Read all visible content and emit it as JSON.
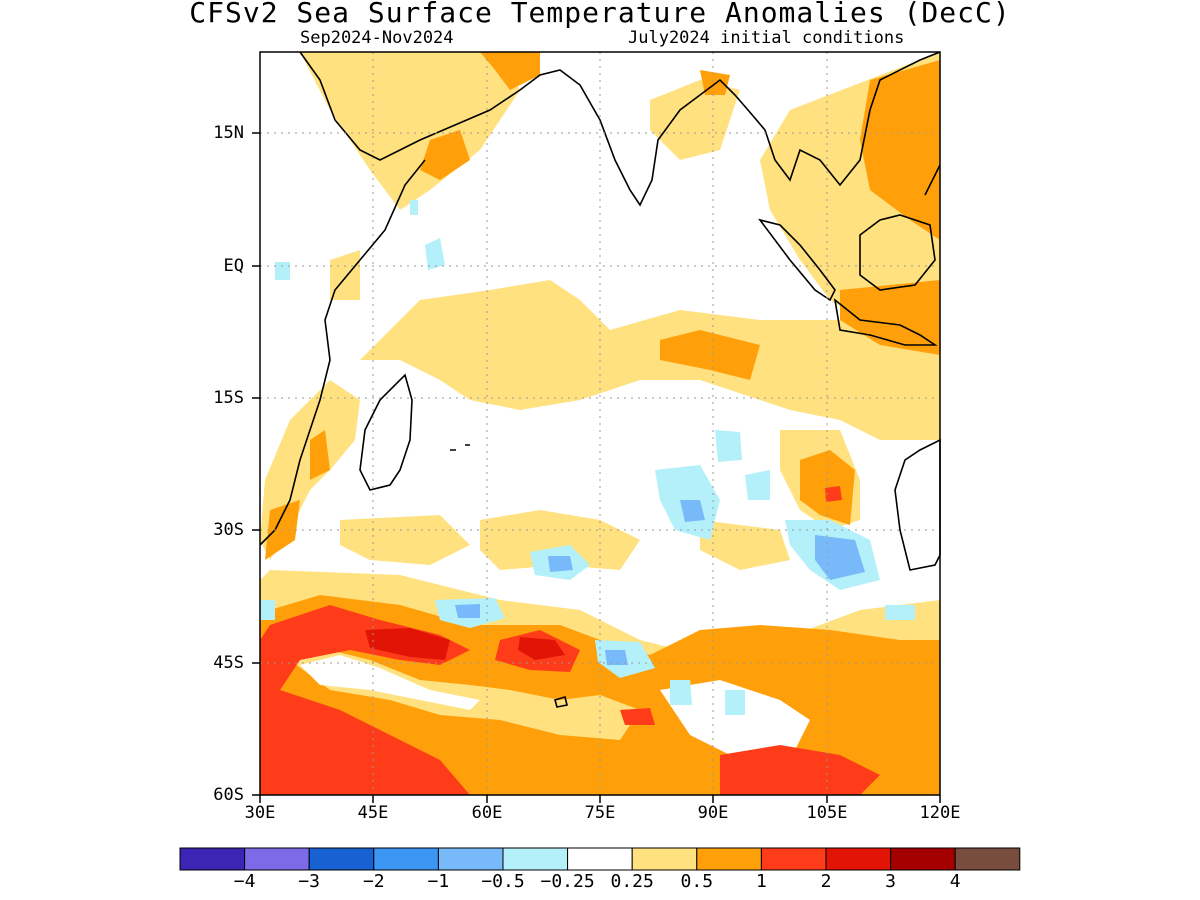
{
  "header": {
    "title": "CFSv2 Sea Surface Temperature Anomalies (DecC)",
    "period": "Sep2024-Nov2024",
    "init": "July2024 initial conditions"
  },
  "map": {
    "lon_range": [
      30,
      120
    ],
    "lat_range": [
      -60,
      24
    ],
    "lat_ticks": [
      {
        "lat": 15,
        "label": "15N"
      },
      {
        "lat": 0,
        "label": "EQ"
      },
      {
        "lat": -15,
        "label": "15S"
      },
      {
        "lat": -30,
        "label": "30S"
      },
      {
        "lat": -45,
        "label": "45S"
      },
      {
        "lat": -60,
        "label": "60S"
      }
    ],
    "lon_ticks": [
      {
        "lon": 30,
        "label": "30E"
      },
      {
        "lon": 45,
        "label": "45E"
      },
      {
        "lon": 60,
        "label": "60E"
      },
      {
        "lon": 75,
        "label": "75E"
      },
      {
        "lon": 90,
        "label": "90E"
      },
      {
        "lon": 105,
        "label": "105E"
      },
      {
        "lon": 120,
        "label": "120E"
      }
    ],
    "grid": true
  },
  "colorbar": {
    "colors": [
      "#3c24b4",
      "#7d6ae9",
      "#1761d3",
      "#3c96f4",
      "#78b9fa",
      "#b3f0fa",
      "#ffffff",
      "#ffe17f",
      "#ffa00a",
      "#ff3c1a",
      "#e11405",
      "#a50000",
      "#784d3d"
    ],
    "labels": [
      "-4",
      "-3",
      "-2",
      "-1",
      "-0.5",
      "-0.25",
      "0.25",
      "0.5",
      "1",
      "2",
      "3",
      "4"
    ]
  }
}
